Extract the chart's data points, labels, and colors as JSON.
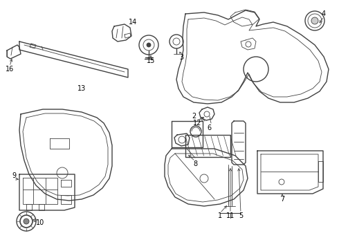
{
  "background_color": "#ffffff",
  "line_color": "#404040",
  "label_color": "#000000",
  "label_fontsize": 7,
  "fig_width": 4.9,
  "fig_height": 3.6,
  "dpi": 100
}
